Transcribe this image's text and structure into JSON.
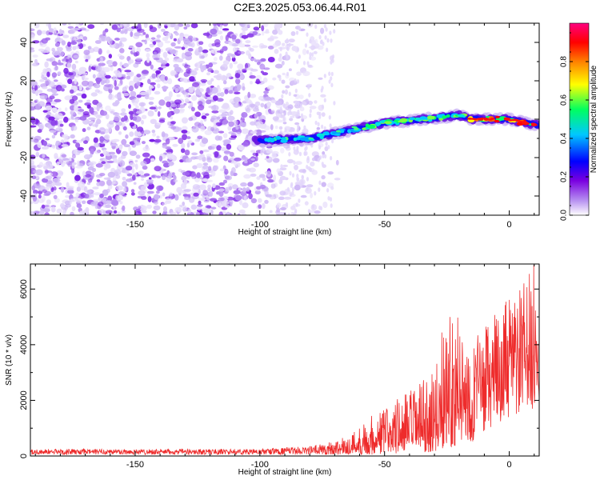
{
  "title": "C2E3.2025.053.06.44.R01",
  "chart_data": [
    {
      "type": "heatmap",
      "xlabel": "Height of straight line (km)",
      "ylabel": "Frequency (Hz)",
      "xlim": [
        -192,
        12
      ],
      "ylim": [
        -50,
        50
      ],
      "xticks": [
        -150,
        -100,
        -50,
        0
      ],
      "yticks": [
        -40,
        -20,
        0,
        20,
        40
      ],
      "colorbar": {
        "label": "Normalized spectral amplitude",
        "range": [
          0.0,
          1.0
        ],
        "ticks": [
          "0.0",
          "0.2",
          "0.4",
          "0.6",
          "0.8"
        ],
        "colormap": [
          "#ffffff",
          "#7a00e0",
          "#0000ff",
          "#00c8ff",
          "#00ff60",
          "#ffff00",
          "#ff8000",
          "#ff0000",
          "#ff0080"
        ]
      },
      "signal_track": [
        {
          "x": -100,
          "y": -11
        },
        {
          "x": -80,
          "y": -10
        },
        {
          "x": -65,
          "y": -6
        },
        {
          "x": -50,
          "y": -2
        },
        {
          "x": -35,
          "y": 0
        },
        {
          "x": -20,
          "y": 2
        },
        {
          "x": -15,
          "y": 0
        },
        {
          "x": 0,
          "y": 0
        },
        {
          "x": 10,
          "y": -3
        }
      ]
    },
    {
      "type": "line",
      "xlabel": "Height of straight line (km)",
      "ylabel": "SNR (10 * v/v)",
      "xlim": [
        -192,
        12
      ],
      "ylim": [
        0,
        6900
      ],
      "xticks": [
        -150,
        -100,
        -50,
        0
      ],
      "yticks": [
        0,
        2000,
        4000,
        6000
      ],
      "line_color": "#ee2b2b",
      "envelope": [
        {
          "x": -192,
          "low": 50,
          "high": 250
        },
        {
          "x": -100,
          "low": 50,
          "high": 250
        },
        {
          "x": -80,
          "low": 50,
          "high": 350
        },
        {
          "x": -65,
          "low": 50,
          "high": 700
        },
        {
          "x": -55,
          "low": 50,
          "high": 1500
        },
        {
          "x": -40,
          "low": 100,
          "high": 2400
        },
        {
          "x": -30,
          "low": 150,
          "high": 3000
        },
        {
          "x": -25,
          "low": 300,
          "high": 5600
        },
        {
          "x": -15,
          "low": 500,
          "high": 4200
        },
        {
          "x": -5,
          "low": 1200,
          "high": 5200
        },
        {
          "x": 5,
          "low": 1500,
          "high": 6200
        },
        {
          "x": 10,
          "low": 1700,
          "high": 6900
        },
        {
          "x": 12,
          "low": 2000,
          "high": 4000
        }
      ]
    }
  ]
}
